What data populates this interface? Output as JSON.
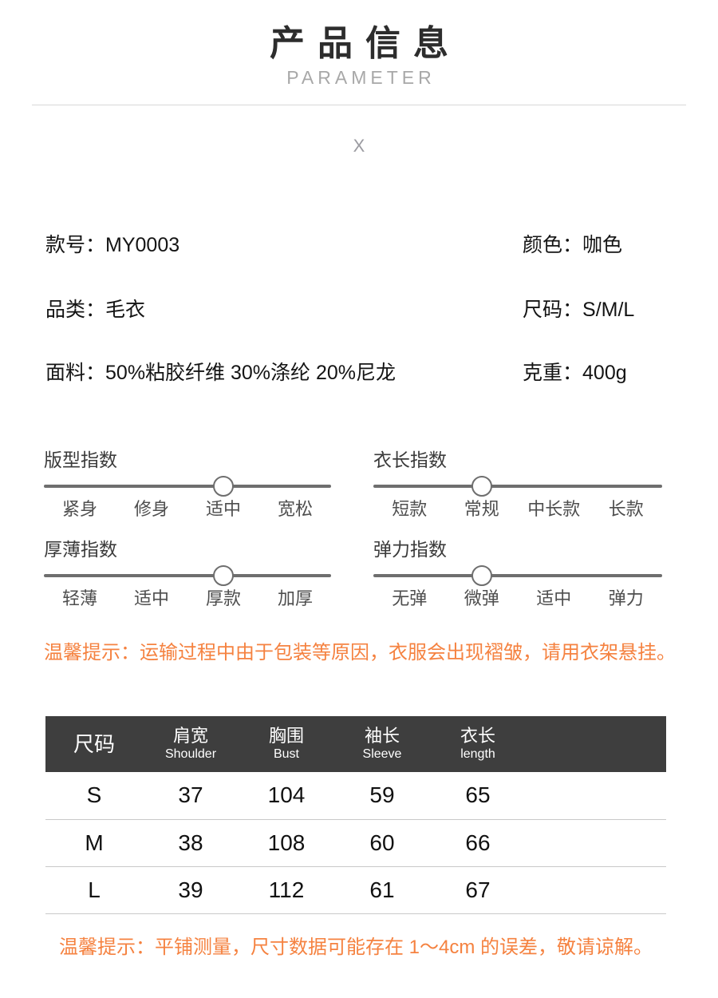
{
  "header": {
    "title": "产品信息",
    "subtitle": "PARAMETER",
    "placeholder": "X"
  },
  "colors": {
    "accent_orange": "#f58240",
    "table_header_bg": "#3e3e3e",
    "slider_track": "#6e6e6e"
  },
  "specs": {
    "left": [
      {
        "label": "款号：",
        "value": "MY0003"
      },
      {
        "label": "品类：",
        "value": "毛衣"
      },
      {
        "label": "面料：",
        "value": "50%粘胶纤维 30%涤纶 20%尼龙"
      }
    ],
    "right": [
      {
        "label": "颜色：",
        "value": "咖色"
      },
      {
        "label": "尺码：",
        "value": "S/M/L"
      },
      {
        "label": "克重：",
        "value": "400g"
      }
    ]
  },
  "indexes": [
    {
      "title": "版型指数",
      "labels": [
        "紧身",
        "修身",
        "适中",
        "宽松"
      ],
      "selected": 2
    },
    {
      "title": "衣长指数",
      "labels": [
        "短款",
        "常规",
        "中长款",
        "长款"
      ],
      "selected": 1
    },
    {
      "title": "厚薄指数",
      "labels": [
        "轻薄",
        "适中",
        "厚款",
        "加厚"
      ],
      "selected": 2
    },
    {
      "title": "弹力指数",
      "labels": [
        "无弹",
        "微弹",
        "适中",
        "弹力"
      ],
      "selected": 1
    }
  ],
  "tips": {
    "shipping": "温馨提示：运输过程中由于包装等原因，衣服会出现褶皱，请用衣架悬挂。",
    "measurement": "温馨提示：平铺测量，尺寸数据可能存在 1～4cm 的误差，敬请谅解。"
  },
  "size_table": {
    "columns": [
      {
        "zh": "尺码",
        "en": ""
      },
      {
        "zh": "肩宽",
        "en": "Shoulder"
      },
      {
        "zh": "胸围",
        "en": "Bust"
      },
      {
        "zh": "袖长",
        "en": "Sleeve"
      },
      {
        "zh": "衣长",
        "en": "length"
      }
    ],
    "rows": [
      [
        "S",
        "37",
        "104",
        "59",
        "65"
      ],
      [
        "M",
        "38",
        "108",
        "60",
        "66"
      ],
      [
        "L",
        "39",
        "112",
        "61",
        "67"
      ]
    ]
  }
}
